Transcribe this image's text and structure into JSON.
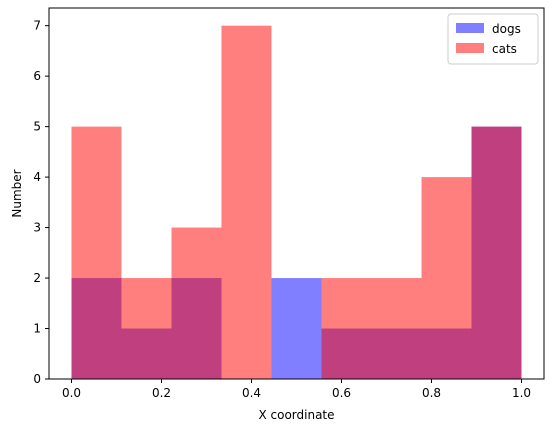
{
  "chart_data": {
    "type": "bar",
    "subtype": "overlapping-histogram",
    "title": "",
    "xlabel": "X coordinate",
    "ylabel": "Number",
    "xlim": [
      -0.05,
      1.05
    ],
    "ylim": [
      0,
      7.35
    ],
    "xticks": [
      0.0,
      0.2,
      0.4,
      0.6,
      0.8,
      1.0
    ],
    "xtick_labels": [
      "0.0",
      "0.2",
      "0.4",
      "0.6",
      "0.8",
      "1.0"
    ],
    "yticks": [
      0,
      1,
      2,
      3,
      4,
      5,
      6,
      7
    ],
    "ytick_labels": [
      "0",
      "1",
      "2",
      "3",
      "4",
      "5",
      "6",
      "7"
    ],
    "bin_edges": [
      0.0,
      0.1111,
      0.2222,
      0.3333,
      0.4444,
      0.5556,
      0.6667,
      0.7778,
      0.8889,
      1.0
    ],
    "series": [
      {
        "name": "dogs",
        "color": "#0000ff",
        "alpha": 0.5,
        "values": [
          2,
          1,
          2,
          0,
          2,
          1,
          1,
          1,
          5
        ]
      },
      {
        "name": "cats",
        "color": "#ff0000",
        "alpha": 0.5,
        "values": [
          5,
          2,
          3,
          7,
          0,
          2,
          2,
          4,
          5
        ]
      }
    ],
    "legend": {
      "position": "top-right",
      "entries": [
        "dogs",
        "cats"
      ]
    },
    "grid": false
  }
}
